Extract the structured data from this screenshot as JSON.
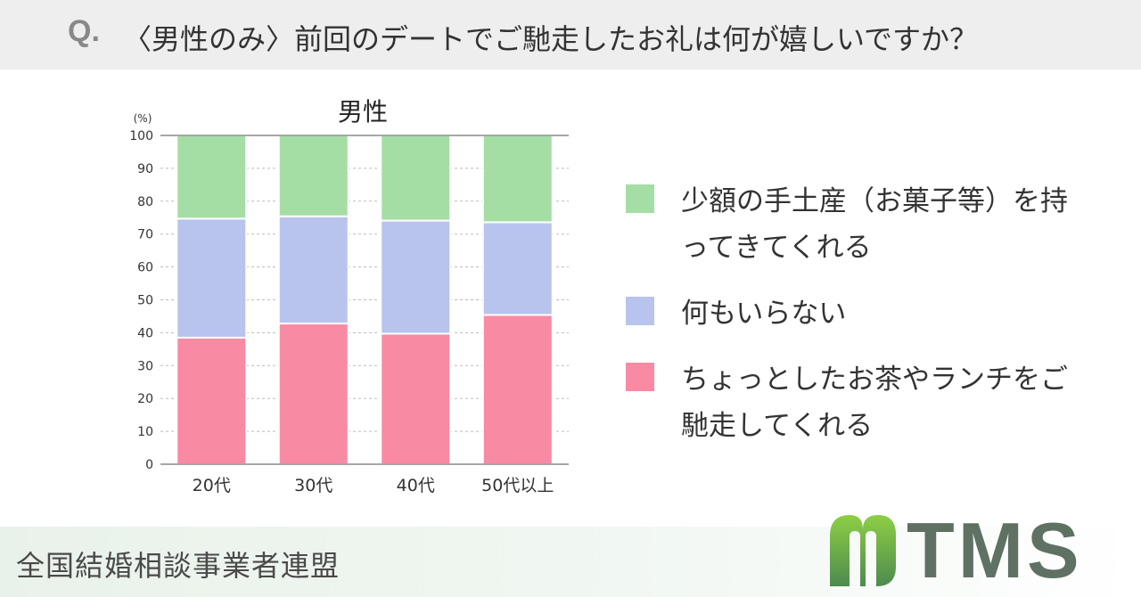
{
  "header": {
    "q_label": "Q.",
    "question": "〈男性のみ〉前回のデートでご馳走したお礼は何が嬉しいですか？"
  },
  "chart_data": {
    "type": "bar",
    "stacked": true,
    "title": "男性",
    "ylabel": "(%)",
    "xlabel": "",
    "ylim": [
      0,
      100
    ],
    "yticks": [
      0,
      10,
      20,
      30,
      40,
      50,
      60,
      70,
      80,
      90,
      100
    ],
    "grid": "horizontal dashed",
    "categories": [
      "20代",
      "30代",
      "40代",
      "50代以上"
    ],
    "series": [
      {
        "name": "ちょっとしたお茶やランチをご馳走してくれる",
        "color": "#f98aa4",
        "values": [
          38.5,
          42.8,
          39.7,
          45.4
        ]
      },
      {
        "name": "何もいらない",
        "color": "#b8c4ee",
        "values": [
          36.2,
          32.6,
          34.4,
          28.2
        ]
      },
      {
        "name": "少額の手土産（お菓子等）を持ってきてくれる",
        "color": "#a5dea5",
        "values": [
          25.3,
          24.6,
          25.9,
          26.4
        ]
      }
    ]
  },
  "legend": {
    "items": [
      {
        "label": "少額の手土産（お菓子等）を持ってきてくれる",
        "color": "#a5dea5"
      },
      {
        "label": "何もいらない",
        "color": "#b8c4ee"
      },
      {
        "label": "ちょっとしたお茶やランチをご馳走してくれる",
        "color": "#f98aa4"
      }
    ]
  },
  "footer": {
    "org": "全国結婚相談事業者連盟",
    "logo_text": "TMS",
    "logo_icon": "tms-m-leaf-icon",
    "logo_colors": {
      "top": "#8dcf45",
      "bottom": "#4e8a4e",
      "text": "#5f7163"
    }
  }
}
